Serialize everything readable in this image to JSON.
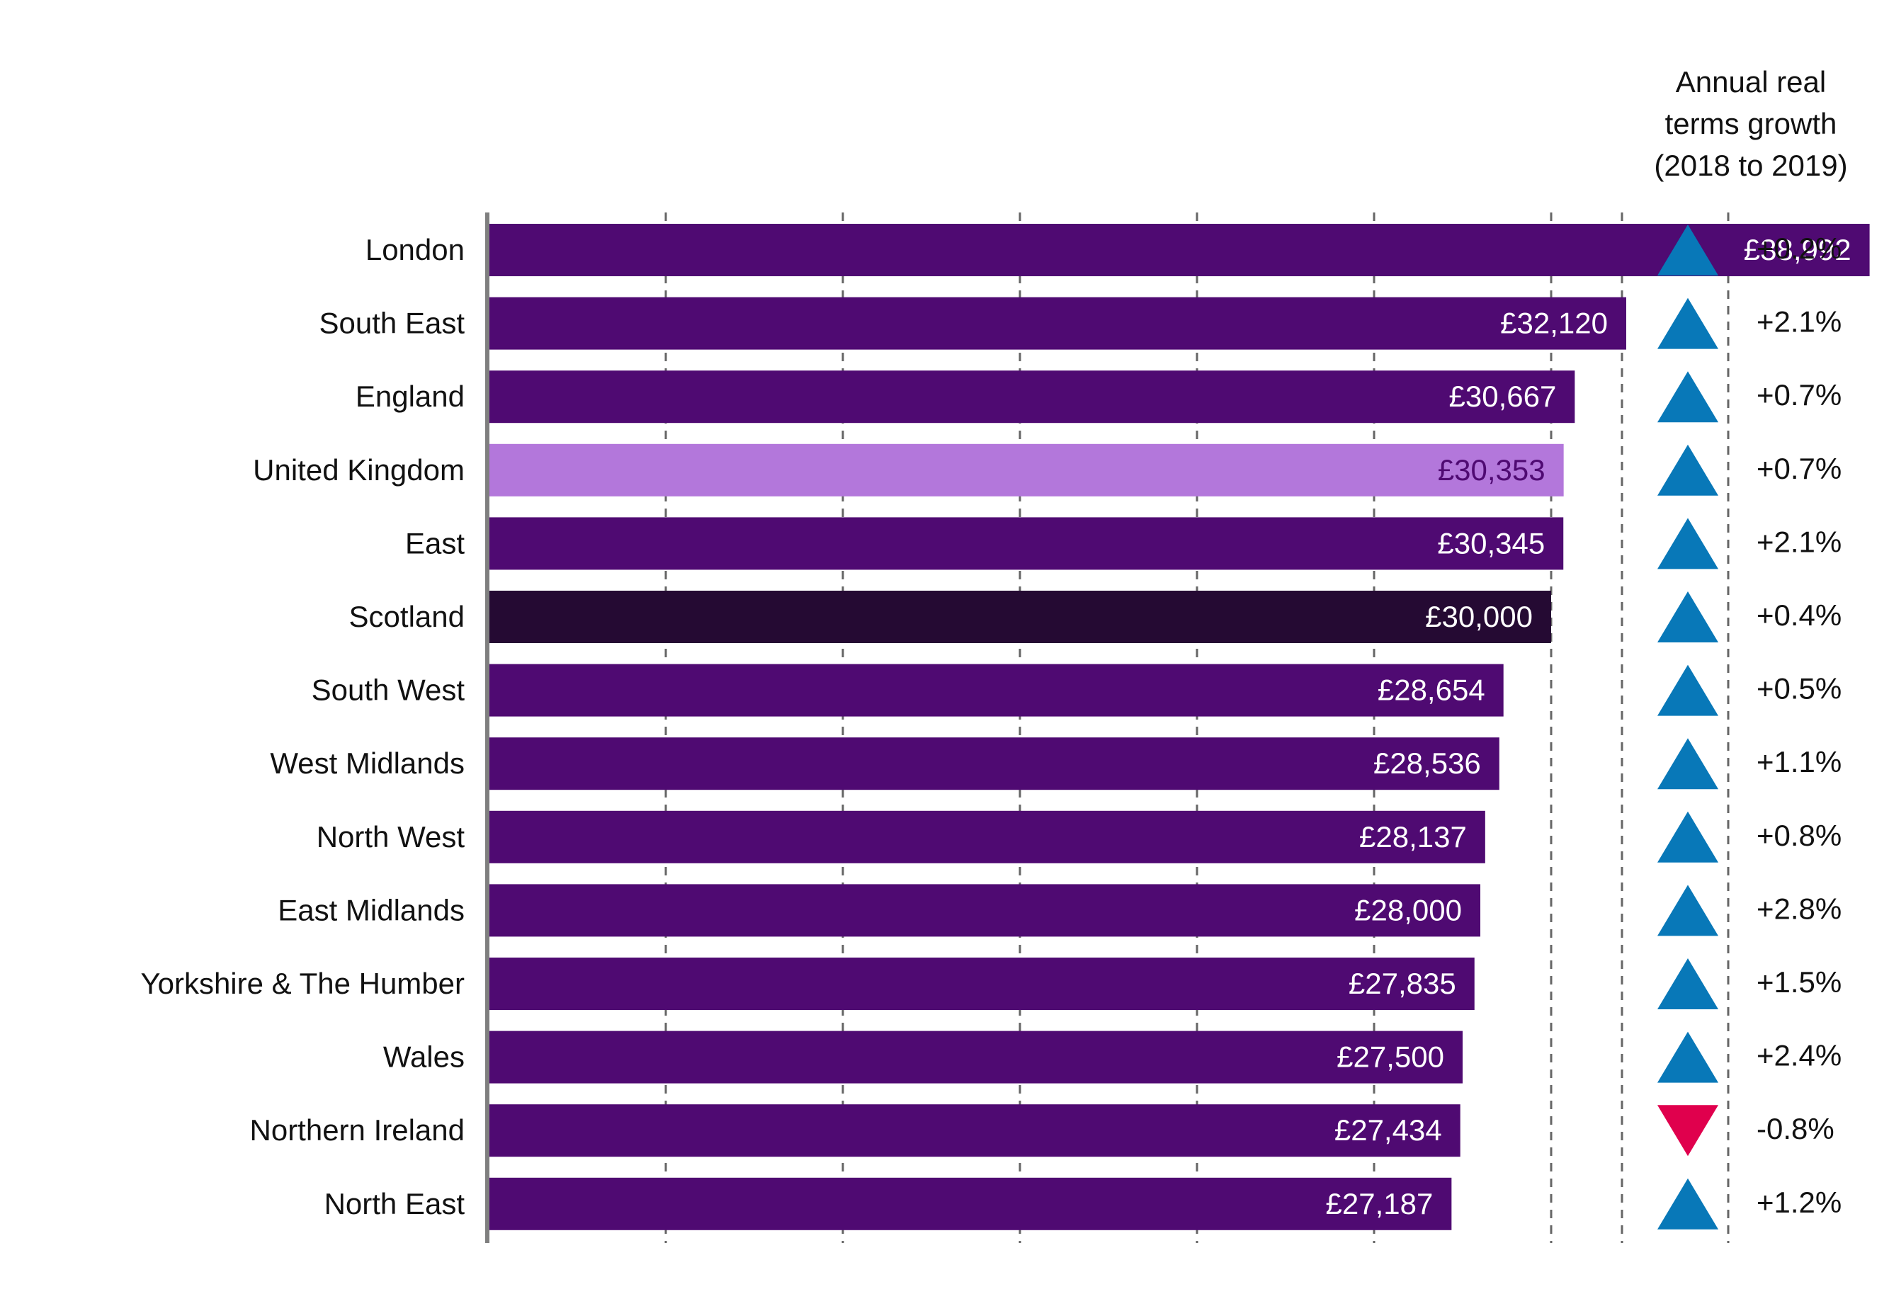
{
  "chart_data": {
    "type": "bar",
    "orientation": "horizontal",
    "categories": [
      "London",
      "South East",
      "England",
      "United Kingdom",
      "East",
      "Scotland",
      "South West",
      "West Midlands",
      "North West",
      "East Midlands",
      "Yorkshire & The Humber",
      "Wales",
      "Northern Ireland",
      "North East"
    ],
    "values": [
      38992,
      32120,
      30667,
      30353,
      30345,
      30000,
      28654,
      28536,
      28137,
      28000,
      27835,
      27500,
      27434,
      27187
    ],
    "value_labels": [
      "£38,992",
      "£32,120",
      "£30,667",
      "£30,353",
      "£30,345",
      "£30,000",
      "£28,654",
      "£28,536",
      "£28,137",
      "£28,000",
      "£27,835",
      "£27,500",
      "£27,434",
      "£27,187"
    ],
    "growth_header": [
      "Annual real",
      "terms growth",
      "(2018 to 2019)"
    ],
    "growth_labels": [
      "+0.2%",
      "+2.1%",
      "+0.7%",
      "+0.7%",
      "+2.1%",
      "+0.4%",
      "+0.5%",
      "+1.1%",
      "+0.8%",
      "+2.8%",
      "+1.5%",
      "+2.4%",
      "-0.8%",
      "+1.2%"
    ],
    "growth_values": [
      0.2,
      2.1,
      0.7,
      0.7,
      2.1,
      0.4,
      0.5,
      1.1,
      0.8,
      2.8,
      1.5,
      2.4,
      -0.8,
      1.2
    ],
    "xlim": [
      0,
      40000
    ],
    "grid": true,
    "colors": {
      "bar": "#4f0a72",
      "bar_highlight_uk": "#b377db",
      "bar_highlight_scotland": "#250a33",
      "value_text": "#ffffff",
      "value_text_uk": "#4f0a72",
      "up_arrow": "#0878b8",
      "down_arrow": "#e0004d",
      "axis": "#7f7f7f",
      "grid": "#666666"
    },
    "highlight": {
      "United Kingdom": "uk",
      "Scotland": "scotland"
    }
  }
}
